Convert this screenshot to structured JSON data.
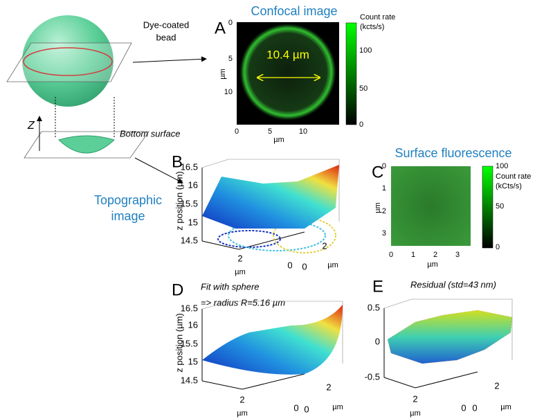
{
  "illustration": {
    "bead_label": [
      "Dye-coated",
      "bead"
    ],
    "bottom_label": "Bottom surface",
    "z_axis": "Z",
    "topographic_label": [
      "Topographic",
      "image"
    ]
  },
  "panels": [
    {
      "letter": "A",
      "title": "Confocal image",
      "y_ticks": [
        "0",
        "5",
        "10"
      ],
      "x_ticks": [
        "0",
        "5",
        "10"
      ],
      "x_label": "µm",
      "y_label": "µm",
      "diameter_label": "10.4 µm",
      "colorbar_label": [
        "Count rate",
        "(kcts/s)"
      ],
      "colorbar_ticks": [
        "100",
        "50",
        "0"
      ]
    },
    {
      "letter": "B",
      "z_ticks": [
        "16.5",
        "16",
        "15.5",
        "15",
        "14.5"
      ],
      "z_label": "z position (µm)",
      "x_ticks": [
        "2",
        "0"
      ],
      "x_label": "µm",
      "y_ticks": [
        "0",
        "2"
      ],
      "y_label": "µm"
    },
    {
      "letter": "C",
      "title": "Surface fluorescence",
      "y_ticks": [
        "0",
        "1",
        "2",
        "3"
      ],
      "x_ticks": [
        "0",
        "1",
        "2",
        "3"
      ],
      "x_label": "µm",
      "y_label": "µm",
      "colorbar_label": [
        "Count rate",
        "(kCts/s)"
      ],
      "colorbar_ticks": [
        "100",
        "50",
        "0"
      ]
    },
    {
      "letter": "D",
      "caption": [
        "Fit with sphere",
        "=> radius R=5.16 µm"
      ],
      "z_ticks": [
        "16.5",
        "16",
        "15.5",
        "15",
        "14.5"
      ],
      "z_label": "z position (µm)",
      "x_ticks": [
        "2",
        "0"
      ],
      "x_label": "µm",
      "y_ticks": [
        "0",
        "2"
      ],
      "y_label": "µm"
    },
    {
      "letter": "E",
      "caption": "Residual (std=43 nm)",
      "z_ticks": [
        "0.5",
        "0",
        "-0.5"
      ],
      "x_ticks": [
        "2",
        "0"
      ],
      "x_label": "µm",
      "y_ticks": [
        "0",
        "2"
      ],
      "y_label": "µm"
    }
  ]
}
